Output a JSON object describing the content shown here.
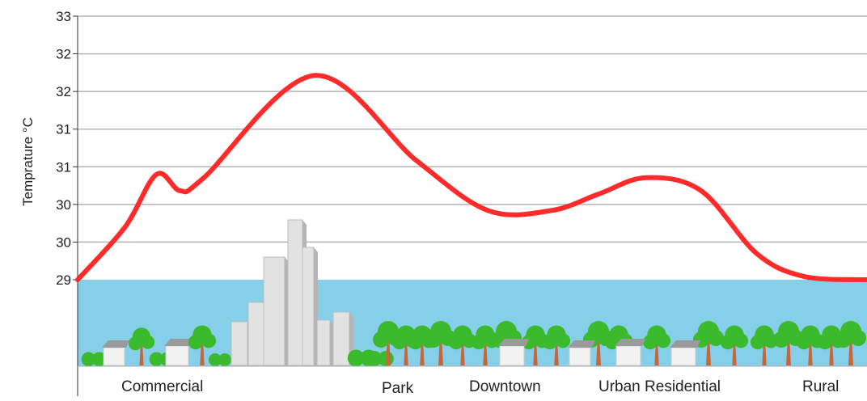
{
  "chart_data": {
    "type": "line",
    "title": "",
    "ylabel": "Temprature °C",
    "xlabel": "",
    "y_tick_labels": [
      "33",
      "32",
      "32",
      "31",
      "31",
      "30",
      "30",
      "29"
    ],
    "categories": [
      "Commercial",
      "Park",
      "Downtown",
      "Urban Residential",
      "Rural"
    ],
    "x": [
      0,
      0.06,
      0.1,
      0.13,
      0.16,
      0.3,
      0.43,
      0.52,
      0.6,
      0.66,
      0.72,
      0.79,
      0.86,
      0.92,
      1.0
    ],
    "y": [
      29.0,
      29.8,
      30.6,
      30.35,
      30.55,
      32.1,
      30.8,
      30.05,
      30.05,
      30.3,
      30.55,
      30.35,
      29.4,
      29.05,
      29.0
    ],
    "grid": true,
    "legend": "none",
    "colors": {
      "line": "#ff2b2b",
      "sky": "#85cfe9",
      "gridline": "#b3b3b3",
      "foliage": "#3cba2e",
      "trunk": "#c8663a",
      "building": "#e2e2e2"
    }
  }
}
